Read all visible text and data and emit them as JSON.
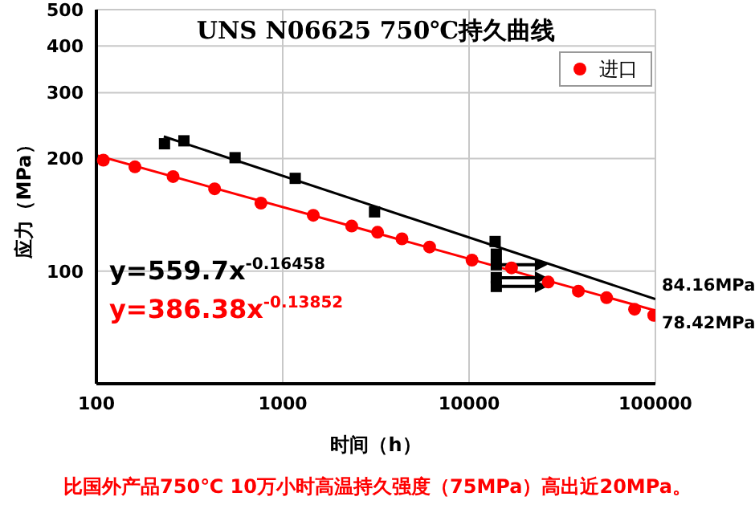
{
  "chart_data": {
    "type": "scatter",
    "title": "UNS N06625 750℃持久曲线",
    "xlabel": "时间（h）",
    "ylabel": "应力（MPa）",
    "log": "xy",
    "grid": true,
    "legend": "top right",
    "marker": "square",
    "xlim": [
      100,
      100000
    ],
    "xticks": [
      100,
      1000,
      10000,
      100000
    ],
    "ylim": [
      50,
      500
    ],
    "yticks": [
      100,
      200,
      300,
      400,
      500
    ],
    "series": [
      {
        "color": "#000000",
        "x": [
          232,
          295,
          555,
          1167,
          3110,
          13800,
          14000,
          14000,
          14000,
          14000
        ],
        "values": [
          219,
          223,
          201,
          177,
          144,
          120,
          111,
          104,
          96,
          91
        ]
      },
      {
        "marker": "circle",
        "name": "进口",
        "color": "#ff0000",
        "x": [
          109,
          161,
          258,
          431,
          764,
          1459,
          2344,
          3228,
          4365,
          6140,
          10370,
          16900,
          26600,
          38600,
          54700,
          77300,
          98000
        ],
        "values": [
          198,
          190,
          179,
          166,
          152,
          141,
          132,
          127,
          122,
          116,
          107,
          102,
          93.5,
          88.4,
          84.9,
          79.1,
          76.2
        ]
      },
      {
        "type": "line",
        "marker": "none",
        "color": "#000000",
        "x": [
          230,
          100000
        ],
        "values": [
          229,
          84.16
        ]
      },
      {
        "type": "line",
        "marker": "none",
        "color": "#ff0000",
        "x": [
          100,
          100000
        ],
        "values": [
          204,
          78.42
        ]
      }
    ],
    "annotations": [
      "y=559.7x$^{-0.16458}$",
      "y=386.38x$^{-0.13852}$",
      {
        "text": "84.16MPa",
        "x": 100000,
        "y": 84.16
      },
      {
        "text": "78.42MPa",
        "x": 100000,
        "y": 78.42
      },
      "比国外产品750℃ 10万小时高温持久强度（75MPa）高出近20MPa。"
    ]
  }
}
